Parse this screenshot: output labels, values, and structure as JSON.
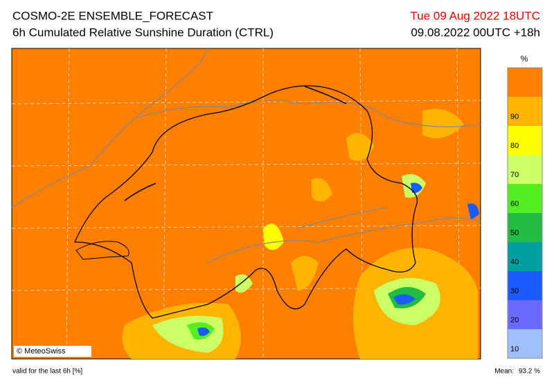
{
  "header": {
    "title": "COSMO-2E ENSEMBLE_FORECAST",
    "subtitle": "6h Cumulated Relative Sunshine Duration (CTRL)",
    "valid_time": "Tue 09 Aug 2022 18UTC",
    "run_info": "09.08.2022 00UTC +18h"
  },
  "map": {
    "credit": "© MeteoSwiss"
  },
  "legend": {
    "unit": "%",
    "ticks": [
      "10",
      "20",
      "30",
      "40",
      "50",
      "60",
      "70",
      "80",
      "90"
    ],
    "colors": [
      "#a0bfff",
      "#6a6aff",
      "#1a5cff",
      "#00a0a0",
      "#22bb44",
      "#55ee22",
      "#ccff66",
      "#ffff00",
      "#ffb400",
      "#ff7f00"
    ]
  },
  "footer": {
    "note": "valid for the last 6h [%]",
    "mean_label": "Mean:",
    "mean_value": "93.2 %"
  }
}
